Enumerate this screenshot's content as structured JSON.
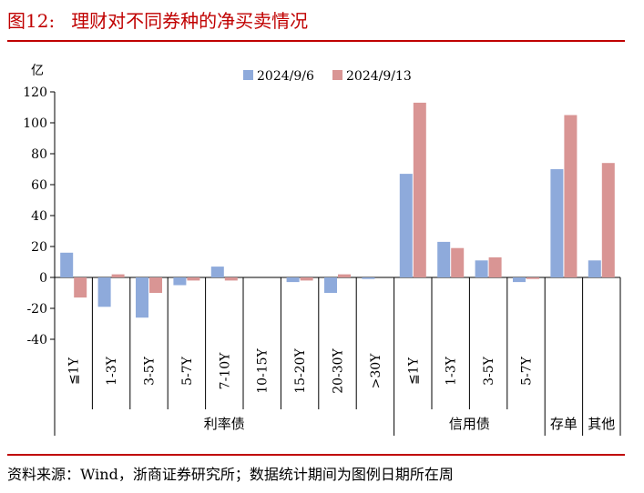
{
  "figure": {
    "label": "图12:",
    "title": "理财对不同券种的净买卖情况",
    "source": "资料来源：Wind，浙商证券研究所；数据统计期间为图例日期所在周"
  },
  "chart_data": {
    "type": "bar",
    "ylabel": "亿",
    "ylim": [
      -40,
      120
    ],
    "yticks": [
      -40,
      -20,
      0,
      20,
      40,
      60,
      80,
      100,
      120
    ],
    "legend_position": "top-center",
    "categories": [
      "≦1Y",
      "1-3Y",
      "3-5Y",
      "5-7Y",
      "7-10Y",
      "10-15Y",
      "15-20Y",
      "20-30Y",
      ">30Y",
      "≦1Y",
      "1-3Y",
      "3-5Y",
      "5-7Y",
      "",
      ""
    ],
    "groups": [
      {
        "label": "利率债",
        "start": 0,
        "end": 8
      },
      {
        "label": "信用债",
        "start": 9,
        "end": 12
      },
      {
        "label": "存单",
        "start": 13,
        "end": 13
      },
      {
        "label": "其他",
        "start": 14,
        "end": 14
      }
    ],
    "series": [
      {
        "name": "2024/9/6",
        "color": "#8eaadb",
        "values": [
          16,
          -19,
          -26,
          -5,
          7,
          0,
          -3,
          -10,
          -1,
          67,
          23,
          11,
          -3,
          70,
          11
        ]
      },
      {
        "name": "2024/9/13",
        "color": "#d99594",
        "values": [
          -13,
          2,
          -10,
          -2,
          -2,
          0,
          -2,
          2,
          0,
          113,
          19,
          13,
          -1,
          105,
          74
        ]
      }
    ]
  }
}
